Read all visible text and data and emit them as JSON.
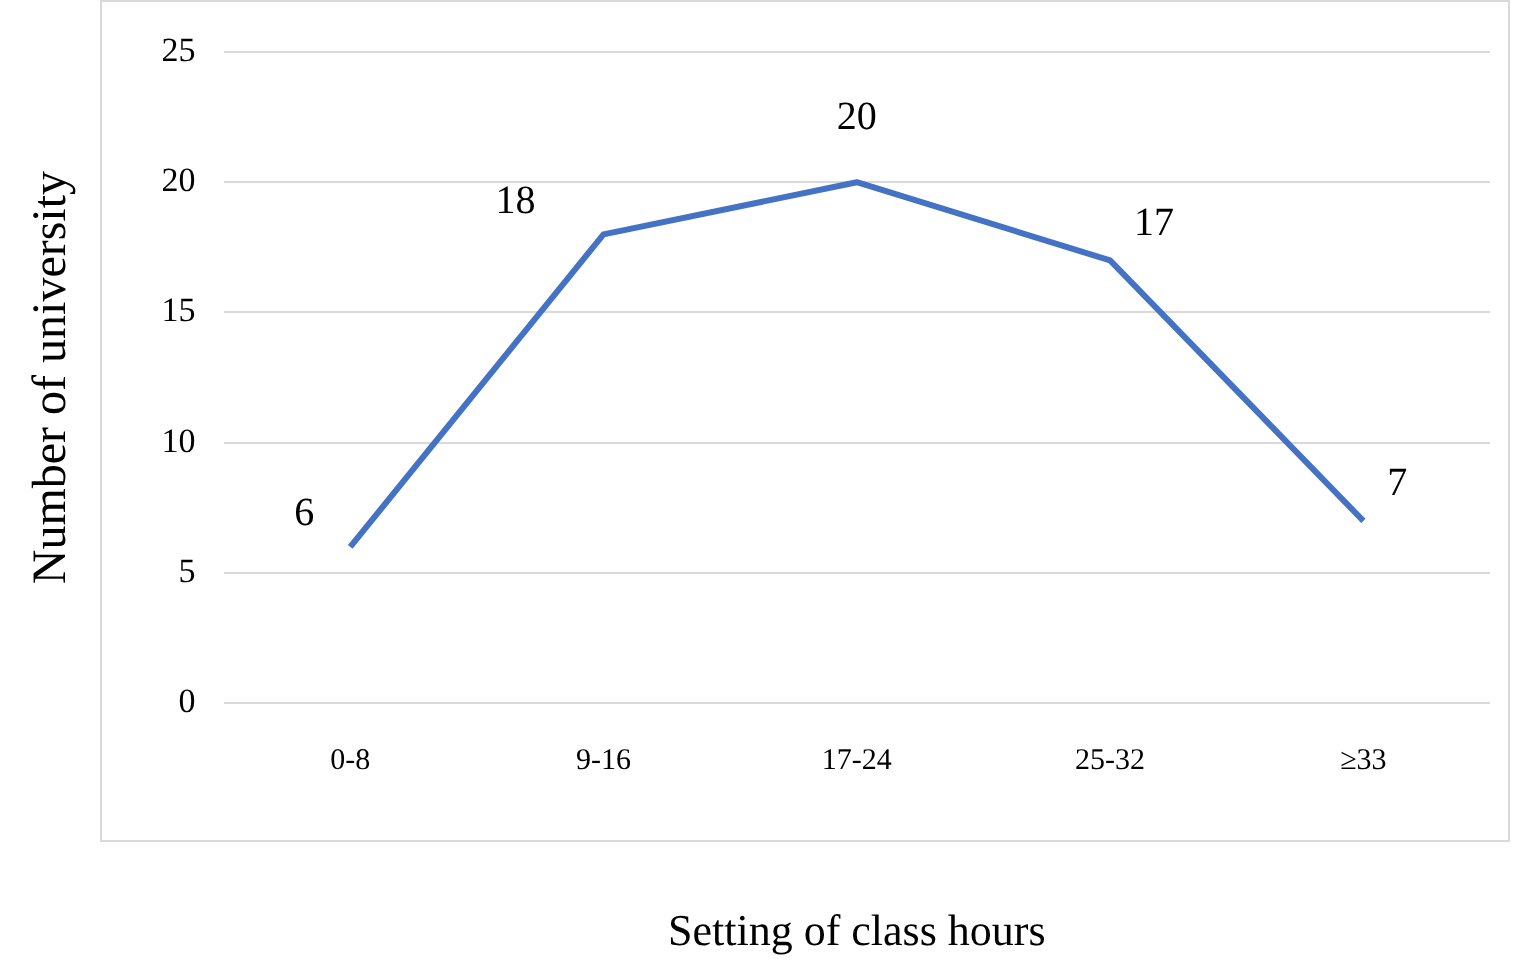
{
  "chart_data": {
    "type": "line",
    "xlabel": "Setting of class hours",
    "ylabel": "Number of university",
    "categories": [
      "0-8",
      "9-16",
      "17-24",
      "25-32",
      "≥33"
    ],
    "series": [
      {
        "color": "#4472c4",
        "values": [
          6,
          18,
          20,
          17,
          7
        ]
      }
    ],
    "ylim": [
      0,
      25
    ],
    "yticks": [
      0,
      5,
      10,
      15,
      20,
      25
    ],
    "grid": "y",
    "legend": false,
    "marker": "none",
    "line_style": "solid",
    "data_labels": true
  }
}
